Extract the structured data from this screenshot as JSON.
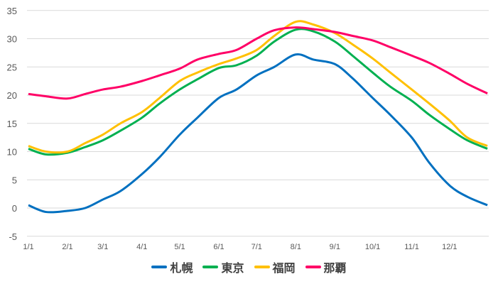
{
  "chart_data": {
    "type": "line",
    "title": "",
    "xlabel": "",
    "ylabel": "",
    "ylim": [
      -5,
      35
    ],
    "yticks": [
      35,
      30,
      25,
      20,
      15,
      10,
      5,
      0,
      -5
    ],
    "xtick_labels": [
      "1/1",
      "2/1",
      "3/1",
      "4/1",
      "5/1",
      "6/1",
      "7/1",
      "8/1",
      "9/1",
      "10/1",
      "11/1",
      "12/1"
    ],
    "xtick_days": [
      1,
      32,
      60,
      91,
      121,
      152,
      182,
      213,
      244,
      274,
      305,
      335
    ],
    "grid": "horizontal",
    "legend_position": "bottom",
    "x_day_of_year": [
      1,
      15,
      32,
      46,
      60,
      74,
      91,
      105,
      121,
      135,
      152,
      166,
      182,
      196,
      213,
      227,
      244,
      258,
      274,
      288,
      305,
      319,
      335,
      349,
      365
    ],
    "series": [
      {
        "name": "札幌",
        "color": "#0070c0",
        "values": [
          0.5,
          -0.7,
          -0.5,
          0,
          1.5,
          3,
          6,
          9,
          13,
          16,
          19.5,
          21,
          23.5,
          25,
          27.2,
          26.3,
          25.5,
          23,
          19.5,
          16.5,
          12.5,
          8,
          4,
          2,
          0.5
        ]
      },
      {
        "name": "東京",
        "color": "#00b050",
        "values": [
          10.5,
          9.5,
          9.8,
          10.8,
          12,
          13.7,
          16,
          18.5,
          21,
          22.8,
          24.8,
          25.3,
          27,
          29.5,
          31.6,
          31.3,
          29.5,
          27,
          24,
          21.5,
          19,
          16.5,
          14,
          12,
          10.5
        ]
      },
      {
        "name": "福岡",
        "color": "#ffc000",
        "values": [
          11,
          10,
          10,
          11.5,
          13,
          15,
          17,
          19.5,
          22.5,
          24,
          25.5,
          26.5,
          28,
          30.5,
          33,
          32.5,
          31,
          29,
          26.5,
          24,
          21,
          18.5,
          15.5,
          12.5,
          11
        ]
      },
      {
        "name": "那覇",
        "color": "#ff0066",
        "values": [
          20.2,
          19.8,
          19.4,
          20.2,
          21,
          21.5,
          22.5,
          23.5,
          24.7,
          26.3,
          27.3,
          28,
          30,
          31.5,
          32,
          31.7,
          31.2,
          30.5,
          29.7,
          28.5,
          27,
          25.7,
          23.8,
          22,
          20.3
        ]
      }
    ]
  }
}
